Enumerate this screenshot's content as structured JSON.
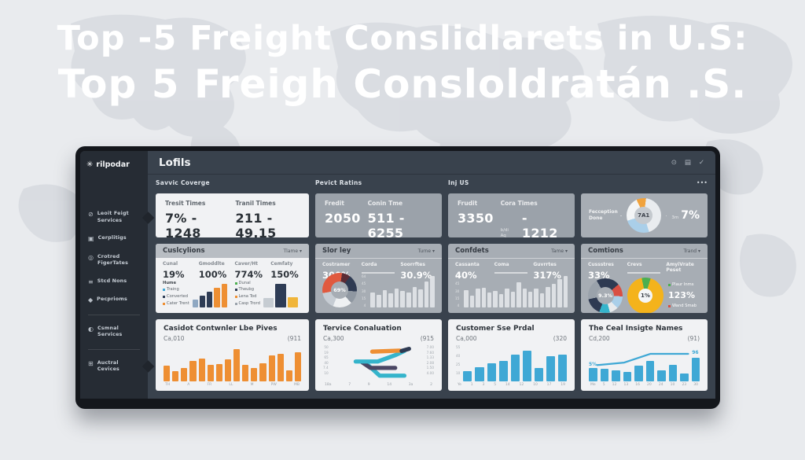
{
  "page": {
    "title_line1": "Top -5 Freight Conslidlarets in U.S:",
    "title_line2": "Top 5 Freigh Consloldratán .S."
  },
  "dashboard": {
    "logo": {
      "glyph": "✳",
      "text": "rilpodar"
    },
    "header": {
      "title": "Lofils",
      "icon_glyphs": [
        "⊙",
        "▤",
        "✓"
      ]
    },
    "sections": [
      "Savvic Coverge",
      "Pevict Ratins",
      "Inj US"
    ],
    "overflow_dots": "•••",
    "sidebar": {
      "items": [
        {
          "glyph": "⊘",
          "label": "Leoit Feigt Services"
        },
        {
          "glyph": "▣",
          "label": "Cerplitigs"
        },
        {
          "glyph": "◎",
          "label": "Crotred FigerTates"
        },
        {
          "glyph": "≡",
          "label": "Stcd Nons"
        },
        {
          "glyph": "◆",
          "label": "Pecprioms"
        },
        {
          "glyph": "◐",
          "label": "Csmnal Services"
        },
        {
          "glyph": "⊞",
          "label": "Auctral Cevices"
        }
      ]
    },
    "row1": {
      "transit": {
        "s1_label": "Tresit Times",
        "s1_value": "7% - 1248",
        "s2_label": "Tranil Times",
        "s2_value": "211 - 49.15"
      },
      "fredit": {
        "s1_label": "Fredit",
        "s1_value": "2050",
        "s2_label": "Conin Tme",
        "s2_value": "511 - 6255"
      },
      "frudit": {
        "s1_label": "Frudit",
        "s1_value": "3350",
        "s2_label": "Cora Times",
        "s2_sub": "b/di Aq__",
        "s2_value": "- 1212"
      },
      "recognition": {
        "label": "Fecception Done",
        "center": "7A1",
        "side_small": "3m",
        "side_value": "7%"
      }
    },
    "row2": {
      "cuslcylions": {
        "title": "Cuslcylions",
        "menu": "Tlame",
        "chev": "▾",
        "stats": [
          {
            "label": "Cunal",
            "value": "19%"
          },
          {
            "label": "Gmoddlte",
            "value": "100%"
          },
          {
            "label": "Caver/Ht",
            "value": "774%"
          },
          {
            "label": "Cemfaty",
            "value": "150%"
          }
        ],
        "legend_left": {
          "title": "Hume",
          "items": [
            "Traing",
            "Converted",
            "Cater Trent"
          ]
        },
        "legend_right": {
          "items": [
            "Dunal",
            "Theubg",
            "Lena Tod",
            "Casp Trord"
          ]
        }
      },
      "slorley": {
        "title": "Slor ley",
        "menu": "Turne",
        "chev": "▾",
        "stats": [
          {
            "label": "Costramer",
            "value": "300%"
          },
          {
            "label": "Corda",
            "value": ""
          },
          {
            "label": "Soorrftes",
            "value": "30.9%"
          }
        ],
        "donut_center": "69%"
      },
      "confdets": {
        "title": "Confdets",
        "menu": "Tame",
        "chev": "▾",
        "stats": [
          {
            "label": "Cassanta",
            "value": "40%"
          },
          {
            "label": "Coma",
            "value": ""
          },
          {
            "label": "Guvrrtes",
            "value": "317%"
          }
        ]
      },
      "comtions": {
        "title": "Comtions",
        "menu": "Trand",
        "chev": "▾",
        "stats": [
          {
            "label": "Cussstres",
            "value": "33%"
          },
          {
            "label": "Crevs",
            "value": ""
          },
          {
            "label": "AmyiVrate Peset",
            "value": ""
          }
        ],
        "donut1_center": "9.3%",
        "donut2_center": "1%",
        "legend_green": "Plaur Inms",
        "legend_value": "123%",
        "legend_red": "Wand Smab"
      }
    },
    "row3": {
      "casidot": {
        "title": "Casidot Contwnler Lbe Pives",
        "sub_left": "Ca,010",
        "sub_right": "(911"
      },
      "tervice": {
        "title": "Tervice Conaluation",
        "sub_left": "Ca,300",
        "sub_right": "(915"
      },
      "customer": {
        "title": "Customer Sse Prdal",
        "sub_left": "Ca,000",
        "sub_right": "(320"
      },
      "insigte": {
        "title": "The Ceal Insigte Names",
        "sub_left": "Cd,200",
        "sub_right": "(91)",
        "line_start_label": "5%",
        "line_end_label": "96"
      }
    }
  },
  "chart_data": {
    "recognition_donut": {
      "type": "pie",
      "from": -25,
      "segments": [
        {
          "color": "#f0a23c",
          "pct": 9
        },
        {
          "color": "#e9ecef",
          "pct": 43
        },
        {
          "color": "#aacfe9",
          "pct": 25
        },
        {
          "color": "#f3f5f6",
          "pct": 23
        }
      ]
    },
    "cusl_bars_left": {
      "type": "bar",
      "values": [
        30,
        46,
        62,
        78,
        95
      ],
      "colors": [
        "#8fa8c2",
        "#2e3c55",
        "#2e3c55",
        "#ee8f33",
        "#ee8f33"
      ]
    },
    "cusl_bars_right": {
      "type": "bar",
      "values": [
        38,
        95,
        42
      ],
      "colors": [
        "#c6ccd2",
        "#2e3c55",
        "#f0b53a"
      ]
    },
    "slorley_donut": {
      "type": "pie",
      "from": -100,
      "segments": [
        {
          "color": "#e05a3f",
          "pct": 30
        },
        {
          "color": "#5b2b34",
          "pct": 8
        },
        {
          "color": "#2e3a52",
          "pct": 16
        },
        {
          "color": "#8f97a1",
          "pct": 12
        },
        {
          "color": "#eef0f2",
          "pct": 18
        },
        {
          "color": "#c6ccd3",
          "pct": 16
        }
      ]
    },
    "slorley_bars": {
      "type": "bar",
      "color": "#e3e6e9",
      "values": [
        46,
        38,
        52,
        42,
        56,
        50,
        46,
        62,
        55,
        78,
        95
      ],
      "y_labels": [
        "64",
        "45",
        "30",
        "15",
        "4"
      ]
    },
    "confdets_bars": {
      "type": "bar",
      "color": "#e3e6e9",
      "values": [
        52,
        36,
        56,
        60,
        46,
        50,
        40,
        56,
        48,
        76,
        58,
        48,
        56,
        44,
        62,
        72,
        86,
        96
      ],
      "y_labels": [
        "64",
        "45",
        "30",
        "15",
        "4"
      ]
    },
    "comtions_donut1": {
      "type": "pie",
      "from": -30,
      "segments": [
        {
          "color": "#2e3a52",
          "pct": 22
        },
        {
          "color": "#d94f43",
          "pct": 12
        },
        {
          "color": "#aacfe9",
          "pct": 12
        },
        {
          "color": "#e8eaec",
          "pct": 8
        },
        {
          "color": "#35b4cb",
          "pct": 10
        },
        {
          "color": "#2e3a52",
          "pct": 16
        },
        {
          "color": "#9aa2ab",
          "pct": 20
        }
      ]
    },
    "comtions_donut2": {
      "type": "pie",
      "from": -12,
      "segments": [
        {
          "color": "#4caf50",
          "pct": 8
        },
        {
          "color": "#f4b31c",
          "pct": 92
        }
      ]
    },
    "casidot_bars": {
      "type": "bar",
      "color": "#ee8f33",
      "title": "Casidot Contwnler Lbe Pives",
      "values": [
        44,
        28,
        36,
        56,
        62,
        46,
        48,
        60,
        90,
        46,
        38,
        50,
        72,
        76,
        30,
        80
      ],
      "x_labels": [
        "TH",
        "A",
        "FR",
        "LL",
        "M",
        "PW",
        "MB"
      ]
    },
    "tervice_lines": {
      "type": "line",
      "title": "Tervice Conaluation",
      "y_left": [
        "50",
        "19",
        "65",
        "40",
        "7.4",
        "10"
      ],
      "y_right": [
        "7.00",
        "7.60",
        "1.33",
        "2.08",
        "1.50",
        "4.00"
      ],
      "x_labels": [
        "18a",
        "7",
        "9",
        "14",
        "3a",
        "2"
      ],
      "series": [
        {
          "name": "teal-lower",
          "color": "#35b4cb",
          "width": 6,
          "points": [
            [
              37,
              49
            ],
            [
              52,
              85
            ],
            [
              79,
              85
            ]
          ]
        },
        {
          "name": "purple",
          "color": "#4a4663",
          "width": 6,
          "points": [
            [
              33,
              47
            ],
            [
              42,
              63
            ],
            [
              69,
              63
            ]
          ]
        },
        {
          "name": "teal-upper",
          "color": "#35b4cb",
          "width": 6,
          "points": [
            [
              26,
              45
            ],
            [
              50,
              45
            ],
            [
              70,
              26
            ],
            [
              79,
              15
            ]
          ]
        },
        {
          "name": "orange",
          "color": "#ee8f33",
          "width": 6,
          "points": [
            [
              44,
              17
            ],
            [
              74,
              14
            ]
          ]
        },
        {
          "name": "navy-tip",
          "color": "#2e3a52",
          "width": 6,
          "points": [
            [
              76,
              15
            ],
            [
              84,
              9
            ]
          ]
        }
      ]
    },
    "customer_bars": {
      "type": "bar",
      "color": "#3fa8d5",
      "title": "Customer Sse Prdal",
      "values": [
        28,
        40,
        50,
        57,
        75,
        85,
        38,
        70,
        75
      ],
      "x_labels": [
        "Ye",
        "1",
        "3",
        "5",
        "14",
        "12",
        "10",
        "17",
        "19"
      ],
      "y_labels": [
        "55",
        "40",
        "25",
        "10"
      ]
    },
    "insigte_bars": {
      "type": "bar",
      "color": "#3fa8d5",
      "title": "The Ceal Insigte Names",
      "values": [
        48,
        45,
        38,
        33,
        55,
        72,
        40,
        57,
        28,
        82
      ],
      "x_labels": [
        "Me",
        "5",
        "12",
        "13",
        "16",
        "20",
        "24",
        "10",
        "23",
        "30"
      ]
    },
    "insigte_line": {
      "type": "line",
      "series": [
        {
          "name": "trend",
          "color": "#3fa8d5",
          "width": 2.5,
          "points": [
            [
              3,
              55
            ],
            [
              30,
              48
            ],
            [
              56,
              24
            ],
            [
              94,
              24
            ]
          ]
        }
      ]
    }
  }
}
